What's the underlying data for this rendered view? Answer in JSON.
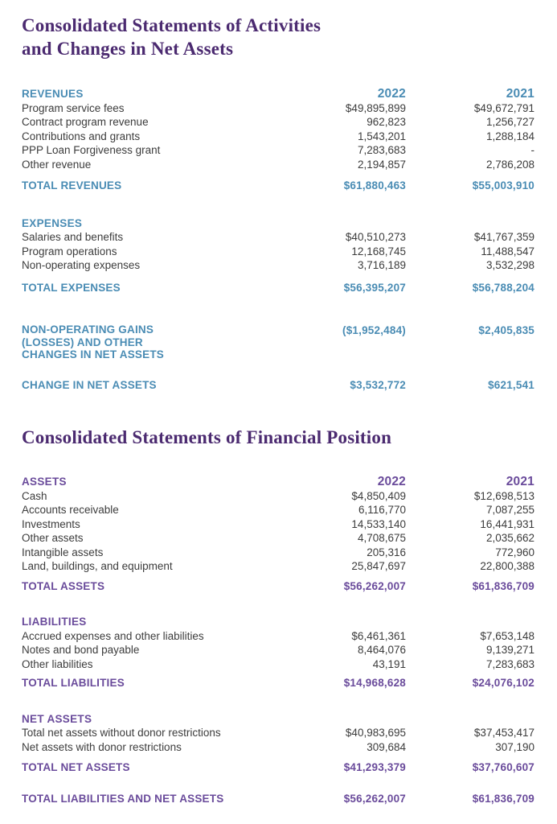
{
  "page": {
    "accent_teal": "#4a8cb4",
    "accent_purple": "#6a4b9b",
    "title_color": "#4b2a70"
  },
  "activities": {
    "title_line1": "Consolidated Statements of Activities",
    "title_line2": "and Changes in Net Assets",
    "col_2022": "2022",
    "col_2021": "2021",
    "revenues": {
      "header": "REVENUES",
      "rows": [
        {
          "label": "Program service fees",
          "y2022": "$49,895,899",
          "y2021": "$49,672,791"
        },
        {
          "label": "Contract program revenue",
          "y2022": "962,823",
          "y2021": "1,256,727"
        },
        {
          "label": "Contributions and grants",
          "y2022": "1,543,201",
          "y2021": "1,288,184"
        },
        {
          "label": "PPP Loan Forgiveness grant",
          "y2022": "7,283,683",
          "y2021": "-"
        },
        {
          "label": "Other revenue",
          "y2022": "2,194,857",
          "y2021": "2,786,208"
        }
      ],
      "total": {
        "label": "TOTAL REVENUES",
        "y2022": "$61,880,463",
        "y2021": "$55,003,910"
      }
    },
    "expenses": {
      "header": "EXPENSES",
      "rows": [
        {
          "label": "Salaries and benefits",
          "y2022": "$40,510,273",
          "y2021": "$41,767,359"
        },
        {
          "label": "Program operations",
          "y2022": "12,168,745",
          "y2021": "11,488,547"
        },
        {
          "label": "Non-operating expenses",
          "y2022": "3,716,189",
          "y2021": "3,532,298"
        }
      ],
      "total": {
        "label": "TOTAL EXPENSES",
        "y2022": "$56,395,207",
        "y2021": "$56,788,204"
      }
    },
    "non_operating": {
      "label": "NON-OPERATING GAINS (LOSSES) AND OTHER CHANGES IN NET ASSETS",
      "y2022": "($1,952,484)",
      "y2021": "$2,405,835"
    },
    "change_in_net_assets": {
      "label": "CHANGE IN NET ASSETS",
      "y2022": "$3,532,772",
      "y2021": "$621,541"
    }
  },
  "financial_position": {
    "title": "Consolidated Statements of Financial Position",
    "col_2022": "2022",
    "col_2021": "2021",
    "assets": {
      "header": "ASSETS",
      "rows": [
        {
          "label": "Cash",
          "y2022": "$4,850,409",
          "y2021": "$12,698,513"
        },
        {
          "label": "Accounts receivable",
          "y2022": "6,116,770",
          "y2021": "7,087,255"
        },
        {
          "label": "Investments",
          "y2022": "14,533,140",
          "y2021": "16,441,931"
        },
        {
          "label": "Other assets",
          "y2022": "4,708,675",
          "y2021": "2,035,662"
        },
        {
          "label": "Intangible assets",
          "y2022": "205,316",
          "y2021": "772,960"
        },
        {
          "label": "Land, buildings, and equipment",
          "y2022": "25,847,697",
          "y2021": "22,800,388"
        }
      ],
      "total": {
        "label": "TOTAL ASSETS",
        "y2022": "$56,262,007",
        "y2021": "$61,836,709"
      }
    },
    "liabilities": {
      "header": "LIABILITIES",
      "rows": [
        {
          "label": "Accrued expenses and other liabilities",
          "y2022": "$6,461,361",
          "y2021": "$7,653,148"
        },
        {
          "label": "Notes and bond payable",
          "y2022": "8,464,076",
          "y2021": "9,139,271"
        },
        {
          "label": "Other liabilities",
          "y2022": "43,191",
          "y2021": "7,283,683"
        }
      ],
      "total": {
        "label": "TOTAL LIABILITIES",
        "y2022": "$14,968,628",
        "y2021": "$24,076,102"
      }
    },
    "net_assets": {
      "header": "NET ASSETS",
      "rows": [
        {
          "label": "Total net assets without donor restrictions",
          "y2022": "$40,983,695",
          "y2021": "$37,453,417"
        },
        {
          "label": "Net assets with donor restrictions",
          "y2022": "309,684",
          "y2021": "307,190"
        }
      ],
      "total": {
        "label": "TOTAL NET ASSETS",
        "y2022": "$41,293,379",
        "y2021": "$37,760,607"
      }
    },
    "grand_total": {
      "label": "TOTAL LIABILITIES AND NET ASSETS",
      "y2022": "$56,262,007",
      "y2021": "$61,836,709"
    }
  }
}
